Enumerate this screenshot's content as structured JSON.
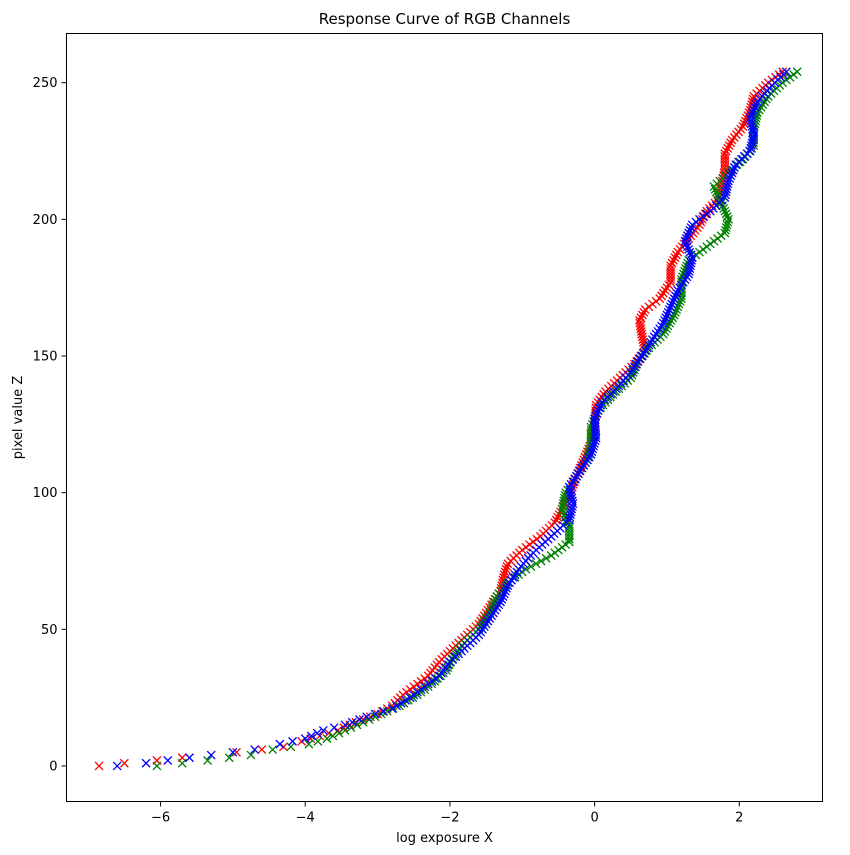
{
  "chart_data": {
    "type": "scatter",
    "title": "Response Curve of RGB Channels",
    "xlabel": "log exposure X",
    "ylabel": "pixel value Z",
    "xlim": [
      -7.3,
      3.15
    ],
    "ylim": [
      -13,
      268
    ],
    "xticks": [
      -6,
      -4,
      -2,
      0,
      2
    ],
    "xtick_labels": [
      "−6",
      "−4",
      "−2",
      "0",
      "2"
    ],
    "yticks": [
      0,
      50,
      100,
      150,
      200,
      250
    ],
    "ytick_labels": [
      "0",
      "50",
      "100",
      "150",
      "200",
      "250"
    ],
    "marker": "x",
    "grid": false,
    "series": [
      {
        "color": "#ff0000",
        "points": [
          [
            -6.85,
            0
          ],
          [
            -6.5,
            1
          ],
          [
            -6.05,
            2
          ],
          [
            -5.7,
            3
          ],
          [
            -4.95,
            5
          ],
          [
            -4.6,
            6
          ],
          [
            -4.3,
            7
          ],
          [
            -4.05,
            9
          ],
          [
            -3.8,
            11
          ],
          [
            -3.55,
            13
          ],
          [
            -3.3,
            16
          ],
          [
            -3.0,
            19
          ],
          [
            -2.8,
            22
          ],
          [
            -2.65,
            26
          ],
          [
            -2.5,
            29
          ],
          [
            -2.3,
            33
          ],
          [
            -2.15,
            38
          ],
          [
            -2.0,
            42
          ],
          [
            -1.8,
            47
          ],
          [
            -1.6,
            52
          ],
          [
            -1.45,
            58
          ],
          [
            -1.3,
            64
          ],
          [
            -1.25,
            70
          ],
          [
            -1.2,
            74
          ],
          [
            -1.0,
            79
          ],
          [
            -0.75,
            84
          ],
          [
            -0.55,
            89
          ],
          [
            -0.45,
            94
          ],
          [
            -0.35,
            99
          ],
          [
            -0.25,
            106
          ],
          [
            -0.15,
            112
          ],
          [
            -0.05,
            118
          ],
          [
            0.0,
            125
          ],
          [
            0.02,
            132
          ],
          [
            0.15,
            137
          ],
          [
            0.35,
            142
          ],
          [
            0.55,
            147
          ],
          [
            0.7,
            152
          ],
          [
            0.65,
            158
          ],
          [
            0.62,
            163
          ],
          [
            0.7,
            167
          ],
          [
            0.9,
            171
          ],
          [
            1.05,
            177
          ],
          [
            1.05,
            183
          ],
          [
            1.15,
            188
          ],
          [
            1.3,
            193
          ],
          [
            1.45,
            198
          ],
          [
            1.55,
            203
          ],
          [
            1.7,
            207
          ],
          [
            1.75,
            212
          ],
          [
            1.8,
            218
          ],
          [
            1.8,
            224
          ],
          [
            1.9,
            229
          ],
          [
            2.05,
            234
          ],
          [
            2.15,
            240
          ],
          [
            2.2,
            245
          ],
          [
            2.4,
            250
          ],
          [
            2.6,
            254
          ]
        ]
      },
      {
        "color": "#008000",
        "points": [
          [
            -6.05,
            0
          ],
          [
            -5.7,
            1
          ],
          [
            -5.35,
            2
          ],
          [
            -5.05,
            3
          ],
          [
            -4.75,
            4
          ],
          [
            -4.45,
            6
          ],
          [
            -4.2,
            7
          ],
          [
            -3.95,
            8
          ],
          [
            -3.7,
            10
          ],
          [
            -3.45,
            13
          ],
          [
            -3.2,
            16
          ],
          [
            -2.95,
            19
          ],
          [
            -2.7,
            22
          ],
          [
            -2.45,
            26
          ],
          [
            -2.25,
            30
          ],
          [
            -2.05,
            35
          ],
          [
            -1.95,
            40
          ],
          [
            -1.8,
            45
          ],
          [
            -1.6,
            50
          ],
          [
            -1.45,
            56
          ],
          [
            -1.35,
            62
          ],
          [
            -1.2,
            67
          ],
          [
            -0.95,
            72
          ],
          [
            -0.6,
            77
          ],
          [
            -0.35,
            82
          ],
          [
            -0.35,
            88
          ],
          [
            -0.45,
            94
          ],
          [
            -0.4,
            100
          ],
          [
            -0.25,
            106
          ],
          [
            -0.1,
            112
          ],
          [
            -0.05,
            118
          ],
          [
            -0.05,
            124
          ],
          [
            0.05,
            130
          ],
          [
            0.25,
            136
          ],
          [
            0.5,
            142
          ],
          [
            0.6,
            148
          ],
          [
            0.75,
            153
          ],
          [
            0.95,
            158
          ],
          [
            1.1,
            165
          ],
          [
            1.2,
            171
          ],
          [
            1.2,
            178
          ],
          [
            1.3,
            185
          ],
          [
            1.55,
            190
          ],
          [
            1.8,
            195
          ],
          [
            1.85,
            200
          ],
          [
            1.75,
            206
          ],
          [
            1.65,
            212
          ],
          [
            1.85,
            217
          ],
          [
            2.05,
            222
          ],
          [
            2.2,
            227
          ],
          [
            2.2,
            233
          ],
          [
            2.25,
            239
          ],
          [
            2.4,
            245
          ],
          [
            2.6,
            250
          ],
          [
            2.8,
            254
          ]
        ]
      },
      {
        "color": "#0000ff",
        "points": [
          [
            -6.6,
            0
          ],
          [
            -6.2,
            1
          ],
          [
            -5.9,
            2
          ],
          [
            -5.6,
            3
          ],
          [
            -5.3,
            4
          ],
          [
            -5.0,
            5
          ],
          [
            -4.7,
            6
          ],
          [
            -4.35,
            8
          ],
          [
            -4.0,
            10
          ],
          [
            -3.75,
            13
          ],
          [
            -3.45,
            15
          ],
          [
            -3.15,
            18
          ],
          [
            -2.8,
            21
          ],
          [
            -2.55,
            25
          ],
          [
            -2.35,
            29
          ],
          [
            -2.15,
            33
          ],
          [
            -2.0,
            38
          ],
          [
            -1.8,
            43
          ],
          [
            -1.6,
            48
          ],
          [
            -1.45,
            54
          ],
          [
            -1.3,
            60
          ],
          [
            -1.2,
            66
          ],
          [
            -1.05,
            72
          ],
          [
            -0.85,
            78
          ],
          [
            -0.6,
            84
          ],
          [
            -0.35,
            90
          ],
          [
            -0.3,
            96
          ],
          [
            -0.35,
            102
          ],
          [
            -0.2,
            108
          ],
          [
            -0.05,
            114
          ],
          [
            0.02,
            120
          ],
          [
            0.0,
            127
          ],
          [
            0.1,
            133
          ],
          [
            0.3,
            138
          ],
          [
            0.5,
            144
          ],
          [
            0.65,
            150
          ],
          [
            0.8,
            156
          ],
          [
            0.95,
            162
          ],
          [
            1.05,
            168
          ],
          [
            1.15,
            174
          ],
          [
            1.3,
            180
          ],
          [
            1.35,
            186
          ],
          [
            1.25,
            192
          ],
          [
            1.35,
            198
          ],
          [
            1.6,
            203
          ],
          [
            1.8,
            208
          ],
          [
            1.85,
            214
          ],
          [
            1.95,
            220
          ],
          [
            2.15,
            225
          ],
          [
            2.2,
            231
          ],
          [
            2.15,
            237
          ],
          [
            2.25,
            243
          ],
          [
            2.45,
            249
          ],
          [
            2.65,
            254
          ]
        ]
      }
    ]
  }
}
